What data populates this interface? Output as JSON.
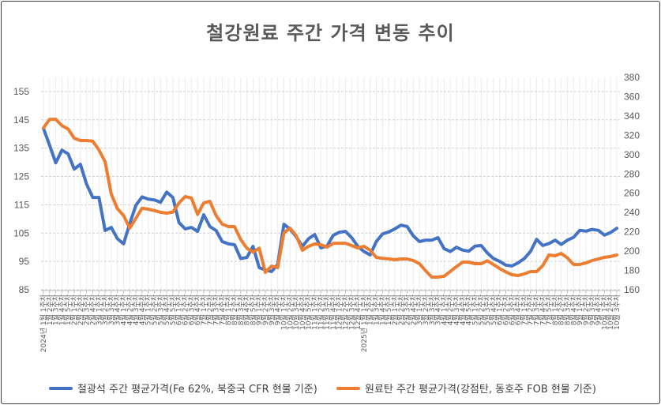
{
  "chart_data": {
    "type": "line",
    "title": "철강원료 주간 가격 변동 추이",
    "categories": [
      "2024년 1월 1주차",
      "1월 2주차",
      "1월 3주차",
      "1월 4주차",
      "1월 5주차",
      "2월 1주차",
      "2월 2주차",
      "2월 3주차",
      "2월 4주차",
      "3월 1주차",
      "3월 2주차",
      "3월 3주차",
      "3월 4주차",
      "4월 1주차",
      "4월 2주차",
      "4월 3주차",
      "4월 4주차",
      "5월 1주차",
      "5월 2주차",
      "5월 3주차",
      "5월 4주차",
      "5월 5주차",
      "6월 1주차",
      "6월 2주차",
      "6월 3주차",
      "6월 4주차",
      "7월 1주차",
      "7월 2주차",
      "7월 3주차",
      "7월 4주차",
      "8월 1주차",
      "8월 2주차",
      "8월 3주차",
      "8월 4주차",
      "8월 5주차",
      "9월 1주차",
      "9월 2주차",
      "9월 3주차",
      "9월 4주차",
      "10월 1주차",
      "10월 2주차",
      "10월 3주차",
      "10월 4주차",
      "10월 5주차",
      "11월 1주차",
      "11월 2주차",
      "11월 3주차",
      "11월 4주차",
      "12월 1주차",
      "12월 2주차",
      "12월 3주차",
      "12월 4주차",
      "2025년 1월 1주차",
      "1월 2주차",
      "1월 3주차",
      "1월 4주차",
      "1월 5주차",
      "2월 1주차",
      "2월 2주차",
      "2월 3주차",
      "2월 4주차",
      "3월 1주차",
      "3월 2주차",
      "3월 3주차",
      "3월 4주차",
      "4월 1주차",
      "4월 2주차",
      "4월 3주차",
      "4월 4주차",
      "4월 5주차",
      "5월 1주차",
      "5월 2주차",
      "5월 3주차",
      "5월 4주차",
      "6월 1주차",
      "6월 2주차",
      "6월 3주차",
      "6월 4주차",
      "7월 1주차",
      "7월 2주차",
      "7월 3주차",
      "7월 4주차",
      "7월 5주차",
      "8월 1주차",
      "8월 2주차",
      "8월 3주차",
      "8월 4주차",
      "9월 1주차",
      "9월 2주차",
      "9월 3주차",
      "9월 4주차",
      "10월 1주차",
      "10월 2주차",
      "10월 3주차"
    ],
    "left_axis": {
      "min": 85,
      "max": 160,
      "ticks": [
        85,
        95,
        105,
        115,
        125,
        135,
        145,
        155
      ]
    },
    "right_axis": {
      "min": 160,
      "max": 380,
      "ticks": [
        160,
        180,
        200,
        220,
        240,
        260,
        280,
        300,
        320,
        340,
        360,
        380
      ]
    },
    "grid": true,
    "legend_position": "bottom",
    "series": [
      {
        "name": "철광석 주간 평균가격(Fe 62%, 북중국 CFR 현물 기준)",
        "axis": "left",
        "color": "#4472C4",
        "values": [
          142,
          136,
          129.8,
          134.3,
          133,
          127.6,
          129.3,
          122.3,
          117.6,
          117.6,
          105.9,
          107,
          103,
          101.2,
          108.4,
          114.8,
          117.8,
          117,
          116.7,
          115.9,
          119.5,
          117.6,
          108.7,
          106.5,
          107,
          105.6,
          111.5,
          107.3,
          105.9,
          102,
          101.2,
          100.9,
          96,
          96.4,
          100.3,
          92.8,
          92,
          91.4,
          93.9,
          108.1,
          106.4,
          103.7,
          100.3,
          103,
          104.5,
          99.8,
          100.4,
          104.2,
          105.3,
          105.6,
          103.4,
          100.3,
          98.5,
          97.3,
          102,
          104.7,
          105.4,
          106.5,
          107.8,
          107.3,
          104,
          102,
          102.5,
          102.5,
          103.4,
          99.5,
          98.5,
          100,
          99,
          98.6,
          100.4,
          100.6,
          98,
          96,
          95,
          93.7,
          93.4,
          94.5,
          96,
          98.5,
          102.8,
          100.6,
          101.3,
          102.5,
          101,
          102.5,
          103.5,
          106,
          105.7,
          106.3,
          106,
          104.3,
          105.2,
          106.7
        ]
      },
      {
        "name": "원료탄 주간 평균가격(강점탄, 동호주 FOB 현물 기준)",
        "axis": "right",
        "color": "#ED7D31",
        "values": [
          327.6,
          336.6,
          336.6,
          330,
          326.5,
          317,
          314.6,
          314.6,
          313.8,
          304.8,
          292.5,
          259,
          244,
          236.9,
          223.8,
          234,
          244.5,
          243.4,
          242,
          240.2,
          239.3,
          240.5,
          250,
          256.5,
          255,
          238,
          250,
          251.6,
          236.9,
          228,
          225.4,
          225.4,
          212,
          203,
          199,
          203,
          178,
          184.5,
          182.9,
          219,
          223.8,
          216,
          200.9,
          205,
          207.4,
          206.6,
          204.2,
          208,
          208.2,
          208.2,
          205.8,
          203.3,
          205,
          200.9,
          193.5,
          192.5,
          192,
          191.1,
          191.9,
          191.9,
          190.3,
          187,
          179.6,
          173.1,
          173.1,
          174,
          179,
          184,
          188.6,
          188.6,
          187,
          187,
          190,
          186,
          182,
          178.5,
          175.5,
          174.7,
          176.4,
          178.8,
          178.8,
          185,
          196,
          195.2,
          197.6,
          193,
          186.2,
          186.2,
          187.8,
          190.3,
          192,
          193.5,
          194.4,
          196
        ]
      }
    ]
  }
}
